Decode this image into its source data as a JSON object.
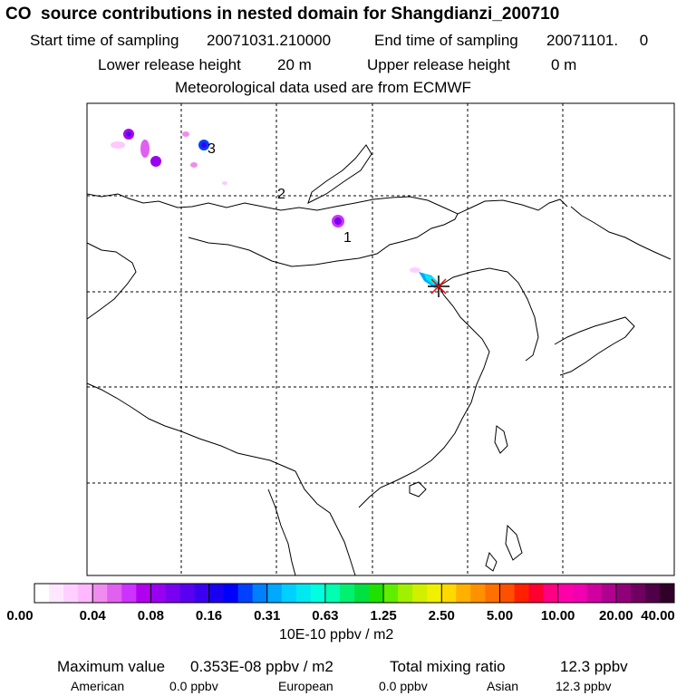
{
  "header": {
    "title": "CO  source contributions in nested domain for Shangdianzi_200710",
    "start_label": "Start time of sampling",
    "start_value": "20071031.210000",
    "end_label": "End time of sampling",
    "end_value": "20071101.     0",
    "lower_label": "Lower release height",
    "lower_value": "20 m",
    "upper_label": "Upper release height",
    "upper_value": "0 m",
    "met_line": "Meteorological data used are from ECMWF"
  },
  "map": {
    "markers": [
      {
        "id": "1",
        "label": "1"
      },
      {
        "id": "2",
        "label": "2"
      },
      {
        "id": "3",
        "label": "3"
      }
    ],
    "receptor": "Shangdianzi"
  },
  "colorbar": {
    "tick_labels": [
      "0.00",
      "0.04",
      "0.08",
      "0.16",
      "0.31",
      "0.63",
      "1.25",
      "2.50",
      "5.00",
      "10.00",
      "20.00",
      "40.00"
    ],
    "unit": "10E-10 ppbv / m2",
    "colors": [
      "#ffffff",
      "#ffe8ff",
      "#ffd0ff",
      "#ffb8ff",
      "#f08cf0",
      "#e060f0",
      "#cc33ff",
      "#b000ee",
      "#9a00f0",
      "#7a00f0",
      "#5a00f0",
      "#3a00f0",
      "#1a00f0",
      "#0000ff",
      "#0040ff",
      "#0080ff",
      "#00a8ff",
      "#00d0ff",
      "#00e8f0",
      "#00ffe0",
      "#00ffb0",
      "#00f070",
      "#00e040",
      "#20e000",
      "#60ee00",
      "#a0f000",
      "#d0f000",
      "#f0f000",
      "#ffd800",
      "#ffb000",
      "#ff9000",
      "#ff7000",
      "#ff5000",
      "#ff2000",
      "#ff0030",
      "#ff0080",
      "#ff00a8",
      "#f000b0",
      "#d000a0",
      "#b00090",
      "#900078",
      "#700060",
      "#500048",
      "#300028"
    ]
  },
  "stats": {
    "max_label": "Maximum value",
    "max_value": "0.353E-08 ppbv / m2",
    "total_label": "Total mixing ratio",
    "total_value": "12.3 ppbv",
    "regions": [
      {
        "name": "American",
        "value": "0.0 ppbv"
      },
      {
        "name": "European",
        "value": "0.0 ppbv"
      },
      {
        "name": "Asian",
        "value": "12.3 ppbv"
      }
    ]
  }
}
